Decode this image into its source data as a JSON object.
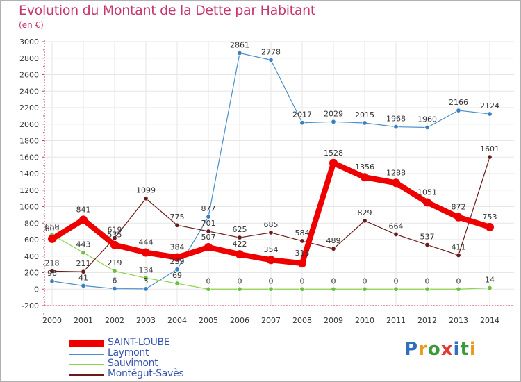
{
  "title": "Evolution du Montant de la Dette par Habitant",
  "unit": "(en €)",
  "logo": {
    "text": "Proxiti",
    "colors": [
      "#2f6fc0",
      "#e89a1c",
      "#3a9a3a",
      "#e03a3a",
      "#2f6fc0",
      "#3a9a3a",
      "#e89a1c"
    ]
  },
  "chart_data": {
    "type": "line",
    "x": [
      "2000",
      "2001",
      "2002",
      "2003",
      "2004",
      "2005",
      "2006",
      "2007",
      "2008",
      "2009",
      "2010",
      "2011",
      "2012",
      "2013",
      "2014"
    ],
    "ylim": [
      -200,
      3000
    ],
    "yticks": [
      -200,
      0,
      200,
      400,
      600,
      800,
      1000,
      1200,
      1400,
      1600,
      1800,
      2000,
      2200,
      2400,
      2600,
      2800,
      3000
    ],
    "grid": true,
    "legend_position": "bottom-left",
    "series": [
      {
        "name": "Laymont",
        "color": "#4a8fcc",
        "marker": "#3a7fc0",
        "width": 1.2,
        "values": [
          96,
          41,
          6,
          3,
          239,
          877,
          2861,
          2778,
          2017,
          2029,
          2015,
          1968,
          1960,
          2166,
          2124
        ],
        "labels": [
          "96",
          "41",
          "6",
          "3",
          "239",
          "877",
          "2861",
          "2778",
          "2017",
          "2029",
          "2015",
          "1968",
          "1960",
          "2166",
          "2124"
        ]
      },
      {
        "name": "Sauvimont",
        "color": "#8fd24a",
        "marker": "#6cc040",
        "width": 1.2,
        "values": [
          659,
          443,
          219,
          134,
          69,
          0,
          0,
          0,
          0,
          0,
          0,
          0,
          0,
          0,
          14
        ],
        "labels": [
          "659",
          "443",
          "219",
          "134",
          "69",
          "0",
          "0",
          "0",
          "0",
          "0",
          "0",
          "0",
          "0",
          "0",
          "14"
        ]
      },
      {
        "name": "Montégut-Savès",
        "color": "#6b1a1a",
        "marker": "#6b1a1a",
        "width": 1.2,
        "values": [
          218,
          211,
          619,
          1099,
          775,
          701,
          625,
          685,
          584,
          489,
          829,
          664,
          537,
          411,
          1601
        ],
        "labels": [
          "218",
          "211",
          "619",
          "1099",
          "775",
          "701",
          "625",
          "685",
          "584",
          "489",
          "829",
          "664",
          "537",
          "411",
          "1601"
        ]
      },
      {
        "name": "SAINT-LOUBE",
        "color": "#ee0000",
        "marker": "#ee0000",
        "width": 8,
        "values": [
          609,
          841,
          535,
          444,
          384,
          507,
          422,
          354,
          313,
          1528,
          1356,
          1288,
          1051,
          872,
          753
        ],
        "labels": [
          "609",
          "841",
          "535",
          "444",
          "384",
          "507",
          "422",
          "354",
          "313",
          "1528",
          "1356",
          "1288",
          "1051",
          "872",
          "753"
        ]
      }
    ],
    "legend_order": [
      "SAINT-LOUBE",
      "Laymont",
      "Sauvimont",
      "Montégut-Savès"
    ]
  }
}
